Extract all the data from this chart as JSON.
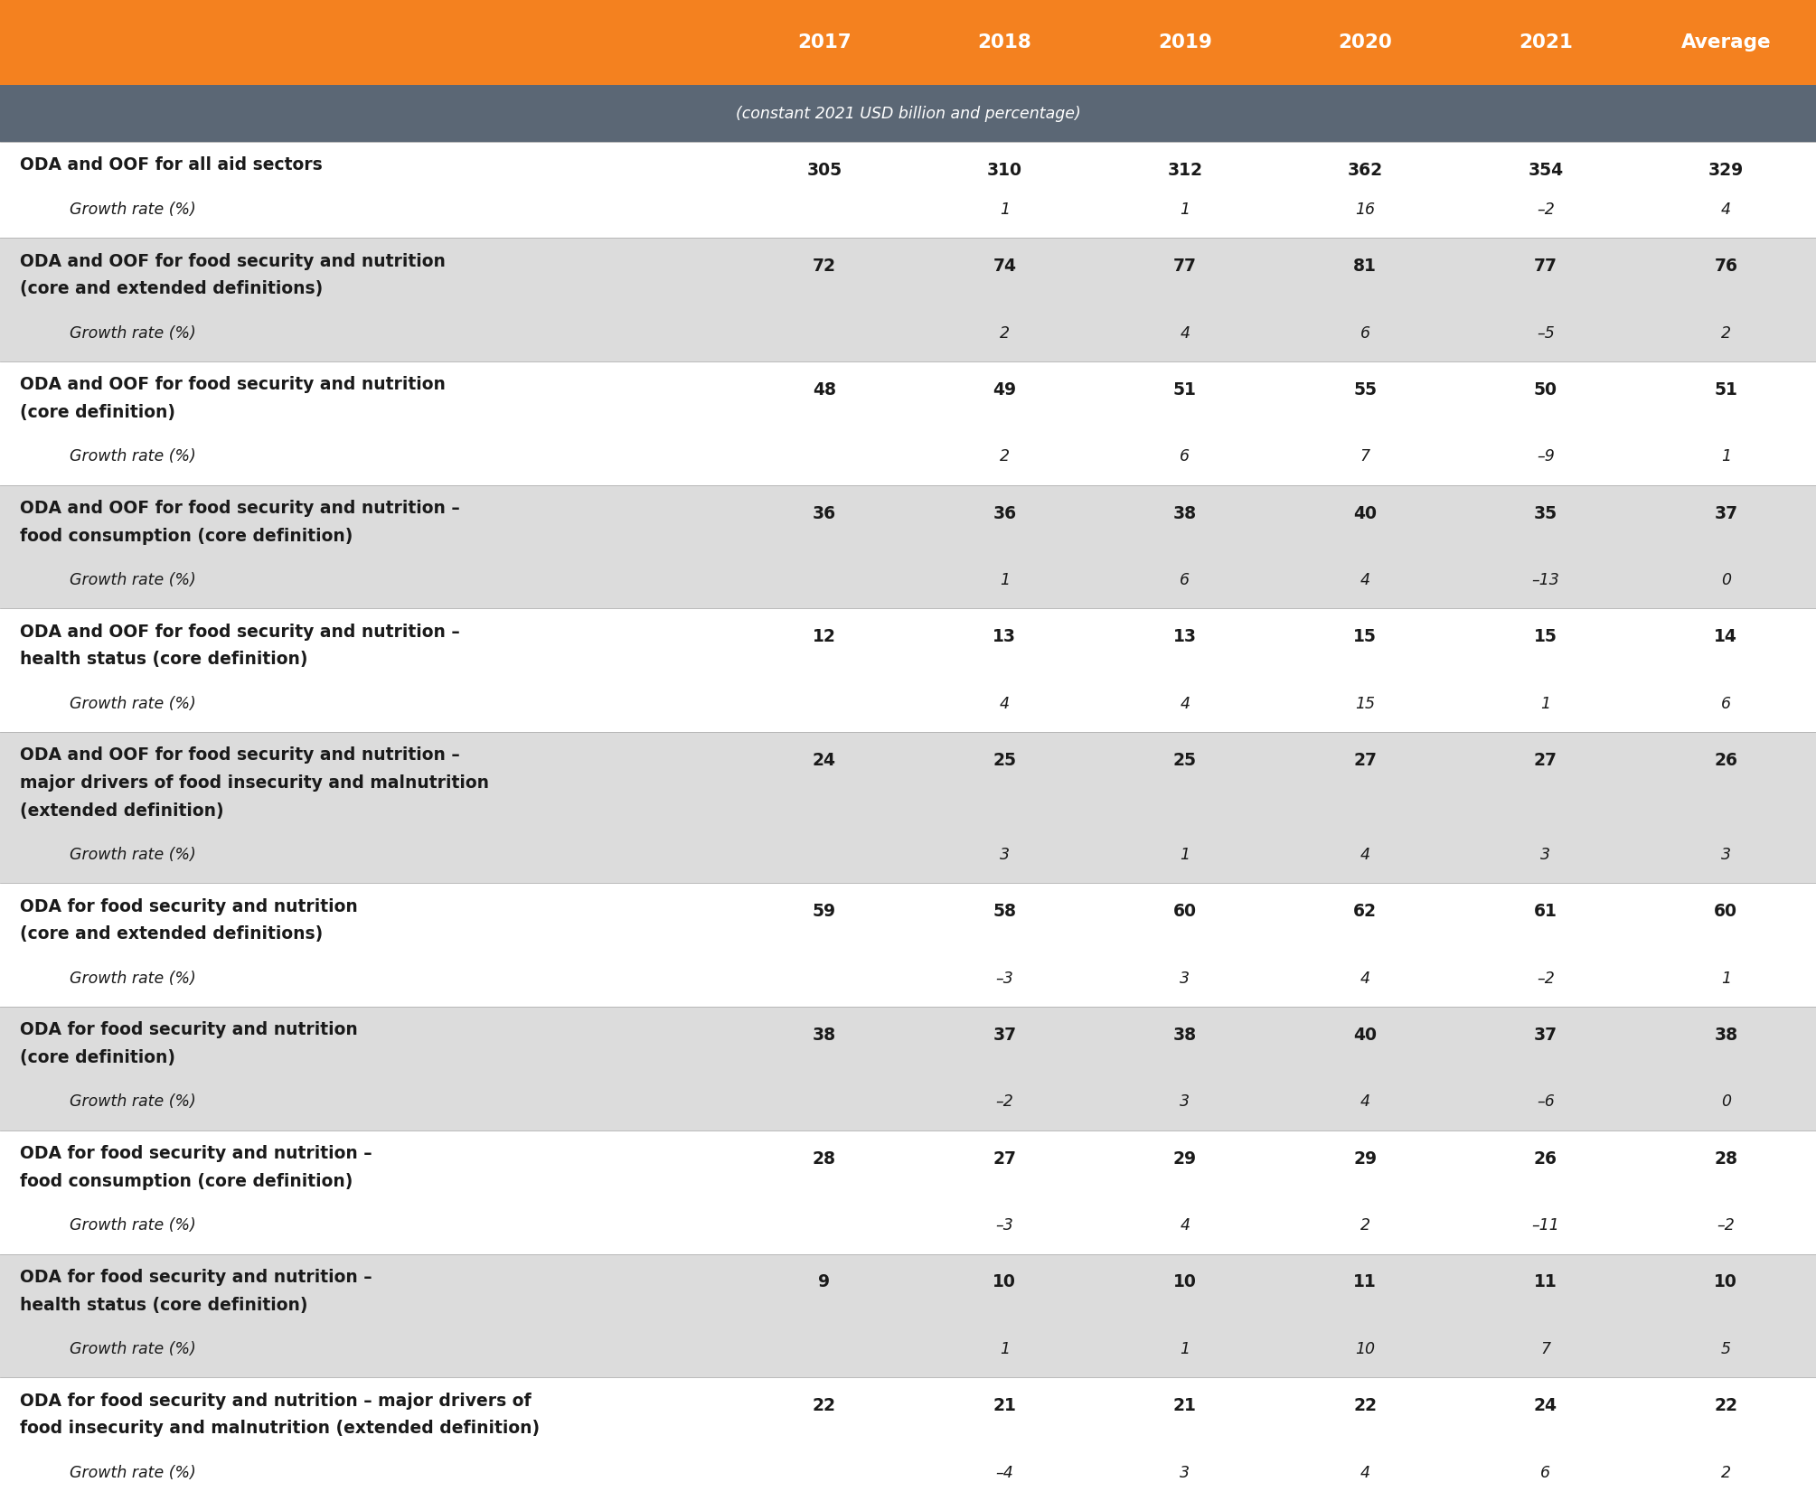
{
  "header_bg": "#F4811F",
  "subheader_bg": "#5B6775",
  "row_bg_light": "#FFFFFF",
  "row_bg_dark": "#DCDCDC",
  "header_text_color": "#FFFFFF",
  "body_text_color": "#1A1A1A",
  "col_headers": [
    "2017",
    "2018",
    "2019",
    "2020",
    "2021",
    "Average"
  ],
  "subheader_text": "(constant 2021 USD billion and percentage)",
  "rows": [
    {
      "label": "ODA and OOF for all aid sectors",
      "label2": "",
      "label3": "",
      "values": [
        "305",
        "310",
        "312",
        "362",
        "354",
        "329"
      ],
      "growth": [
        "",
        "1",
        "1",
        "16",
        "–2",
        "4"
      ],
      "bg": "light",
      "n_label_lines": 1
    },
    {
      "label": "ODA and OOF for food security and nutrition",
      "label2": "(core and extended definitions)",
      "label3": "",
      "values": [
        "72",
        "74",
        "77",
        "81",
        "77",
        "76"
      ],
      "growth": [
        "",
        "2",
        "4",
        "6",
        "–5",
        "2"
      ],
      "bg": "dark",
      "n_label_lines": 2
    },
    {
      "label": "ODA and OOF for food security and nutrition",
      "label2": "(core definition)",
      "label3": "",
      "values": [
        "48",
        "49",
        "51",
        "55",
        "50",
        "51"
      ],
      "growth": [
        "",
        "2",
        "6",
        "7",
        "–9",
        "1"
      ],
      "bg": "light",
      "n_label_lines": 2
    },
    {
      "label": "ODA and OOF for food security and nutrition –",
      "label2": "food consumption (core definition)",
      "label3": "",
      "values": [
        "36",
        "36",
        "38",
        "40",
        "35",
        "37"
      ],
      "growth": [
        "",
        "1",
        "6",
        "4",
        "–13",
        "0"
      ],
      "bg": "dark",
      "n_label_lines": 2
    },
    {
      "label": "ODA and OOF for food security and nutrition –",
      "label2": "health status (core definition)",
      "label3": "",
      "values": [
        "12",
        "13",
        "13",
        "15",
        "15",
        "14"
      ],
      "growth": [
        "",
        "4",
        "4",
        "15",
        "1",
        "6"
      ],
      "bg": "light",
      "n_label_lines": 2
    },
    {
      "label": "ODA and OOF for food security and nutrition –",
      "label2": "major drivers of food insecurity and malnutrition",
      "label3": "(extended definition)",
      "values": [
        "24",
        "25",
        "25",
        "27",
        "27",
        "26"
      ],
      "growth": [
        "",
        "3",
        "1",
        "4",
        "3",
        "3"
      ],
      "bg": "dark",
      "n_label_lines": 3
    },
    {
      "label": "ODA for food security and nutrition",
      "label2": "(core and extended definitions)",
      "label3": "",
      "values": [
        "59",
        "58",
        "60",
        "62",
        "61",
        "60"
      ],
      "growth": [
        "",
        "–3",
        "3",
        "4",
        "–2",
        "1"
      ],
      "bg": "light",
      "n_label_lines": 2
    },
    {
      "label": "ODA for food security and nutrition",
      "label2": "(core definition)",
      "label3": "",
      "values": [
        "38",
        "37",
        "38",
        "40",
        "37",
        "38"
      ],
      "growth": [
        "",
        "–2",
        "3",
        "4",
        "–6",
        "0"
      ],
      "bg": "dark",
      "n_label_lines": 2
    },
    {
      "label": "ODA for food security and nutrition –",
      "label2": "food consumption (core definition)",
      "label3": "",
      "values": [
        "28",
        "27",
        "29",
        "29",
        "26",
        "28"
      ],
      "growth": [
        "",
        "–3",
        "4",
        "2",
        "–11",
        "–2"
      ],
      "bg": "light",
      "n_label_lines": 2
    },
    {
      "label": "ODA for food security and nutrition –",
      "label2": "health status (core definition)",
      "label3": "",
      "values": [
        "9",
        "10",
        "10",
        "11",
        "11",
        "10"
      ],
      "growth": [
        "",
        "1",
        "1",
        "10",
        "7",
        "5"
      ],
      "bg": "dark",
      "n_label_lines": 2
    },
    {
      "label": "ODA for food security and nutrition – major drivers of",
      "label2": "food insecurity and malnutrition (extended definition)",
      "label3": "",
      "values": [
        "22",
        "21",
        "21",
        "22",
        "24",
        "22"
      ],
      "growth": [
        "",
        "–4",
        "3",
        "4",
        "6",
        "2"
      ],
      "bg": "light",
      "n_label_lines": 2
    }
  ]
}
